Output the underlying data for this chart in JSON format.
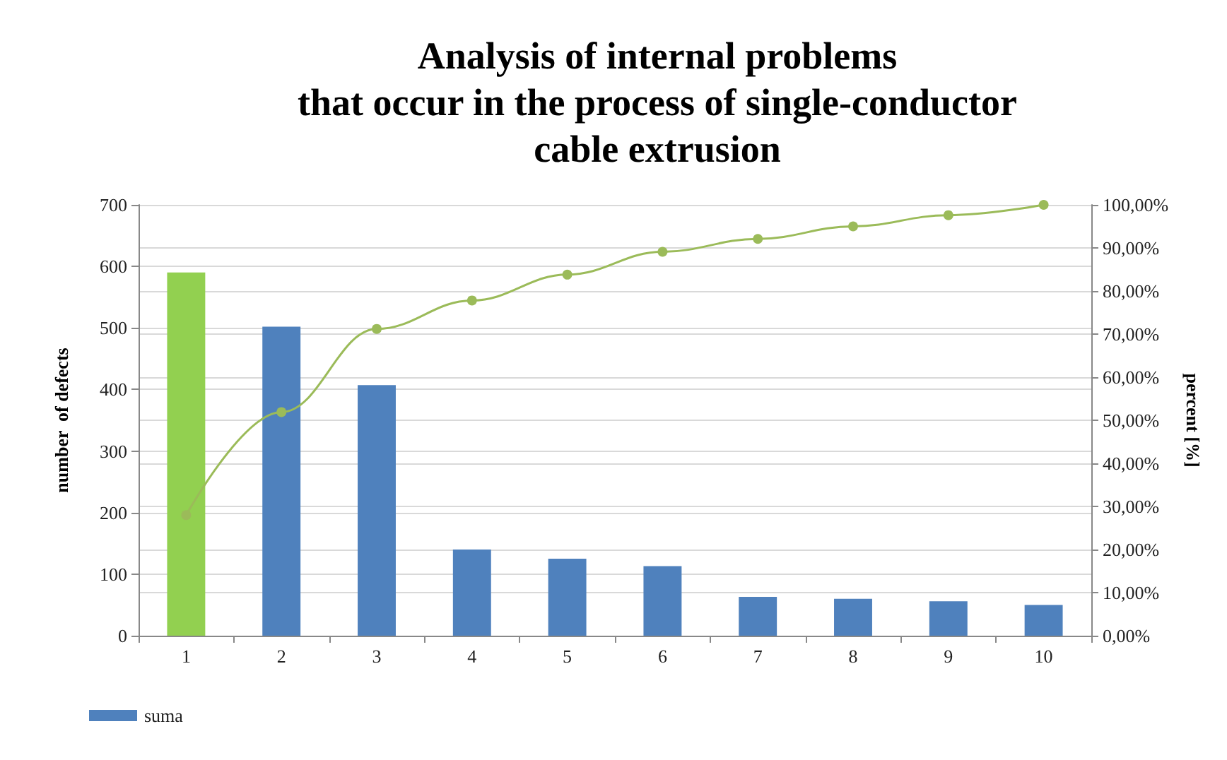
{
  "chart_data": {
    "type": "bar",
    "title": "Analysis of internal problems\nthat occur in the process of single-conductor\ncable extrusion",
    "xlabel": null,
    "ylabel": "number  of defects",
    "y2label": "percent [%]",
    "categories": [
      "1",
      "2",
      "3",
      "4",
      "5",
      "6",
      "7",
      "8",
      "9",
      "10"
    ],
    "series": [
      {
        "name": "suma",
        "color": "#4f81bd",
        "colors": [
          "#92d050",
          "#4f81bd",
          "#4f81bd",
          "#4f81bd",
          "#4f81bd",
          "#4f81bd",
          "#4f81bd",
          "#4f81bd",
          "#4f81bd",
          "#4f81bd"
        ],
        "values": [
          590,
          502,
          407,
          140,
          125,
          113,
          63,
          60,
          56,
          50
        ]
      },
      {
        "type": "line",
        "axis": "y2",
        "color": "#9bbb59",
        "marker": "circle",
        "values": [
          28.0,
          51.9,
          71.2,
          77.8,
          83.8,
          89.1,
          92.1,
          95.0,
          97.6,
          100
        ]
      }
    ],
    "ylim": [
      0,
      700
    ],
    "yticks": [
      0,
      100,
      200,
      300,
      400,
      500,
      600,
      700
    ],
    "y2lim": [
      0,
      100
    ],
    "y2ticks": [
      {
        "value": 0,
        "label": "0,00%"
      },
      {
        "value": 10,
        "label": "10,00%"
      },
      {
        "value": 20,
        "label": "20,00%"
      },
      {
        "value": 30,
        "label": "30,00%"
      },
      {
        "value": 40,
        "label": "40,00%"
      },
      {
        "value": 50,
        "label": "50,00%"
      },
      {
        "value": 60,
        "label": "60,00%"
      },
      {
        "value": 70,
        "label": "70,00%"
      },
      {
        "value": 80,
        "label": "80,00%"
      },
      {
        "value": 90,
        "label": "90,00%"
      },
      {
        "value": 100,
        "label": "100,00%"
      }
    ],
    "grid": "y",
    "legend": "bottom left"
  }
}
